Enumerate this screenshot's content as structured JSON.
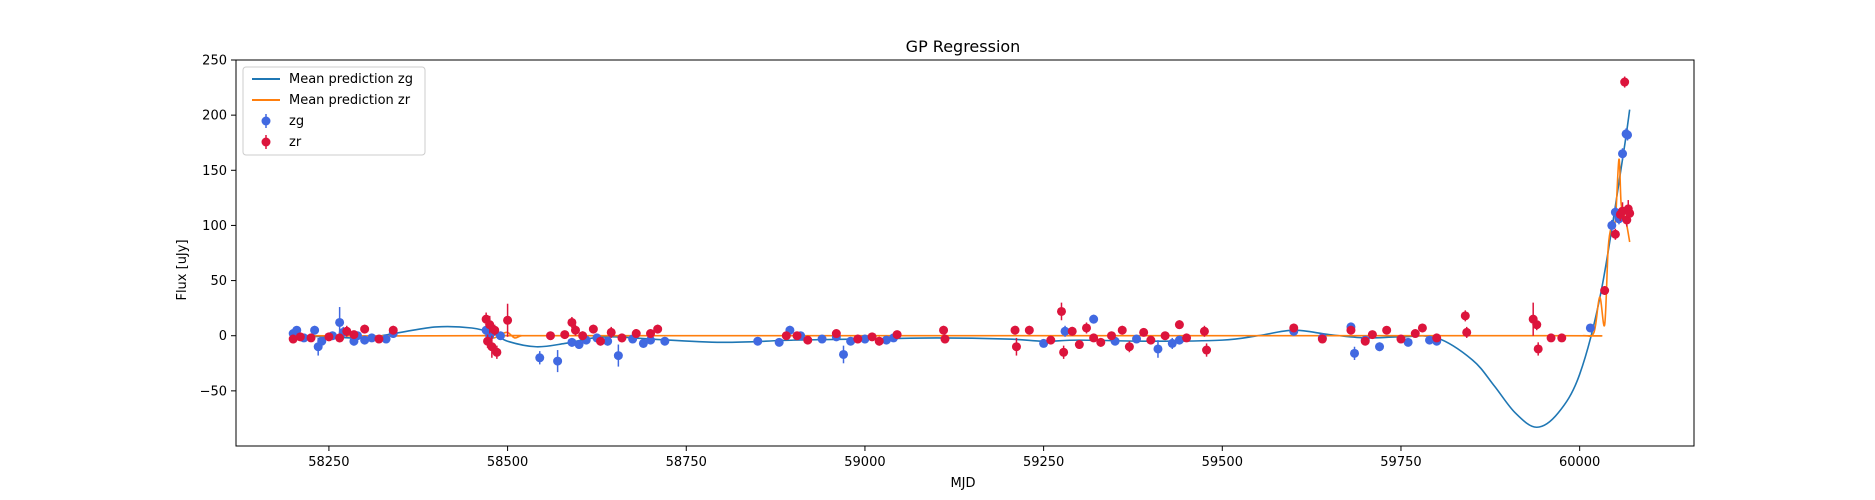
{
  "chart_data": {
    "type": "scatter",
    "title": "GP Regression",
    "xlabel": "MJD",
    "ylabel": "Flux [uJy]",
    "xlim": [
      58120,
      60160
    ],
    "ylim": [
      -100,
      250
    ],
    "xticks": [
      58250,
      58500,
      58750,
      59000,
      59250,
      59500,
      59750,
      60000
    ],
    "yticks": [
      -50,
      0,
      50,
      100,
      150,
      200,
      250
    ],
    "grid": false,
    "legend_position": "top-left",
    "legend": [
      {
        "label": "Mean prediction zg",
        "kind": "line",
        "color": "#1f77b4"
      },
      {
        "label": "Mean prediction zr",
        "kind": "line",
        "color": "#ff7f0e"
      },
      {
        "label": "zg",
        "kind": "errorbar",
        "color": "#4169e1"
      },
      {
        "label": "zr",
        "kind": "errorbar",
        "color": "#dc143c"
      }
    ],
    "lines": [
      {
        "name": "Mean prediction zg",
        "color": "#1f77b4",
        "x": [
          58200,
          58250,
          58300,
          58350,
          58400,
          58450,
          58480,
          58500,
          58540,
          58580,
          58620,
          58650,
          58700,
          58800,
          58900,
          59000,
          59100,
          59200,
          59250,
          59300,
          59400,
          59500,
          59550,
          59600,
          59650,
          59700,
          59750,
          59800,
          59850,
          59880,
          59910,
          59940,
          59970,
          60000,
          60030,
          60060,
          60070
        ],
        "y": [
          0,
          -1,
          -2,
          3,
          8,
          7,
          2,
          -5,
          -10,
          -7,
          -2,
          -1,
          -3,
          -6,
          -4,
          -3,
          -2,
          -3,
          -5,
          -4,
          -5,
          -4,
          0,
          5,
          1,
          -2,
          -1,
          -2,
          -22,
          -45,
          -70,
          -83,
          -70,
          -35,
          40,
          160,
          205
        ]
      },
      {
        "name": "Mean prediction zr",
        "color": "#ff7f0e",
        "x": [
          58200,
          58460,
          58470,
          58480,
          58490,
          58500,
          58510,
          58520,
          58540,
          59200,
          59960,
          60005,
          60020,
          60028,
          60035,
          60040,
          60045,
          60050,
          60055,
          60058,
          60062,
          60066,
          60070
        ],
        "y": [
          0,
          0,
          3,
          -2,
          1,
          3,
          -2,
          0,
          0,
          0,
          0,
          0,
          3,
          35,
          10,
          80,
          100,
          105,
          160,
          120,
          110,
          100,
          85
        ]
      }
    ],
    "series": [
      {
        "name": "zg",
        "color": "#4169e1",
        "points": [
          [
            58200,
            2,
            3
          ],
          [
            58205,
            5,
            3
          ],
          [
            58215,
            -2,
            3
          ],
          [
            58230,
            5,
            4
          ],
          [
            58235,
            -10,
            8
          ],
          [
            58240,
            -5,
            4
          ],
          [
            58255,
            0,
            3
          ],
          [
            58265,
            12,
            14
          ],
          [
            58270,
            3,
            5
          ],
          [
            58285,
            -5,
            4
          ],
          [
            58290,
            0,
            3
          ],
          [
            58300,
            -4,
            4
          ],
          [
            58310,
            -2,
            3
          ],
          [
            58330,
            -3,
            3
          ],
          [
            58340,
            2,
            4
          ],
          [
            58470,
            5,
            4
          ],
          [
            58475,
            0,
            3
          ],
          [
            58490,
            0,
            3
          ],
          [
            58545,
            -20,
            6
          ],
          [
            58570,
            -23,
            10
          ],
          [
            58590,
            -6,
            4
          ],
          [
            58600,
            -8,
            4
          ],
          [
            58610,
            -4,
            3
          ],
          [
            58625,
            -2,
            3
          ],
          [
            58640,
            -5,
            4
          ],
          [
            58655,
            -18,
            10
          ],
          [
            58675,
            -3,
            3
          ],
          [
            58690,
            -7,
            4
          ],
          [
            58700,
            -4,
            3
          ],
          [
            58720,
            -5,
            3
          ],
          [
            58850,
            -5,
            3
          ],
          [
            58880,
            -6,
            3
          ],
          [
            58895,
            5,
            4
          ],
          [
            58910,
            0,
            3
          ],
          [
            58940,
            -3,
            3
          ],
          [
            58960,
            -1,
            3
          ],
          [
            58970,
            -17,
            8
          ],
          [
            58980,
            -5,
            3
          ],
          [
            59000,
            -3,
            4
          ],
          [
            59030,
            -4,
            3
          ],
          [
            59040,
            -2,
            3
          ],
          [
            59250,
            -7,
            3
          ],
          [
            59280,
            4,
            5
          ],
          [
            59320,
            15,
            4
          ],
          [
            59350,
            -5,
            3
          ],
          [
            59380,
            -3,
            3
          ],
          [
            59410,
            -12,
            8
          ],
          [
            59430,
            -7,
            5
          ],
          [
            59440,
            -4,
            4
          ],
          [
            59600,
            4,
            4
          ],
          [
            59640,
            -2,
            3
          ],
          [
            59680,
            8,
            4
          ],
          [
            59685,
            -16,
            6
          ],
          [
            59700,
            -4,
            3
          ],
          [
            59720,
            -10,
            4
          ],
          [
            59760,
            -6,
            3
          ],
          [
            59790,
            -4,
            3
          ],
          [
            59800,
            -5,
            3
          ],
          [
            60015,
            7,
            3
          ],
          [
            60045,
            100,
            5
          ],
          [
            60050,
            112,
            5
          ],
          [
            60055,
            106,
            5
          ],
          [
            60060,
            165,
            5
          ],
          [
            60065,
            183,
            5
          ],
          [
            60067,
            182,
            5
          ]
        ]
      },
      {
        "name": "zr",
        "color": "#dc143c",
        "points": [
          [
            58200,
            -3,
            4
          ],
          [
            58210,
            -1,
            3
          ],
          [
            58225,
            -2,
            3
          ],
          [
            58250,
            -1,
            3
          ],
          [
            58265,
            -2,
            4
          ],
          [
            58275,
            4,
            5
          ],
          [
            58285,
            1,
            3
          ],
          [
            58300,
            6,
            4
          ],
          [
            58320,
            -3,
            3
          ],
          [
            58340,
            5,
            4
          ],
          [
            58470,
            15,
            6
          ],
          [
            58472,
            -5,
            6
          ],
          [
            58475,
            10,
            8
          ],
          [
            58478,
            -10,
            10
          ],
          [
            58482,
            5,
            5
          ],
          [
            58485,
            -15,
            6
          ],
          [
            58500,
            14,
            15
          ],
          [
            58560,
            0,
            3
          ],
          [
            58580,
            1,
            3
          ],
          [
            58590,
            12,
            5
          ],
          [
            58595,
            5,
            5
          ],
          [
            58605,
            0,
            4
          ],
          [
            58620,
            6,
            4
          ],
          [
            58630,
            -5,
            4
          ],
          [
            58645,
            3,
            5
          ],
          [
            58660,
            -2,
            4
          ],
          [
            58680,
            2,
            4
          ],
          [
            58700,
            2,
            3
          ],
          [
            58710,
            6,
            4
          ],
          [
            58890,
            0,
            3
          ],
          [
            58905,
            0,
            3
          ],
          [
            58920,
            -4,
            3
          ],
          [
            58960,
            2,
            3
          ],
          [
            58990,
            -3,
            4
          ],
          [
            59010,
            -1,
            3
          ],
          [
            59020,
            -5,
            4
          ],
          [
            59045,
            1,
            3
          ],
          [
            59110,
            5,
            4
          ],
          [
            59112,
            -3,
            4
          ],
          [
            59210,
            5,
            4
          ],
          [
            59212,
            -10,
            8
          ],
          [
            59230,
            5,
            4
          ],
          [
            59260,
            -4,
            3
          ],
          [
            59275,
            22,
            8
          ],
          [
            59278,
            -15,
            6
          ],
          [
            59290,
            4,
            4
          ],
          [
            59300,
            -8,
            4
          ],
          [
            59310,
            7,
            5
          ],
          [
            59320,
            -2,
            3
          ],
          [
            59330,
            -6,
            4
          ],
          [
            59345,
            0,
            3
          ],
          [
            59360,
            5,
            4
          ],
          [
            59370,
            -10,
            5
          ],
          [
            59390,
            3,
            3
          ],
          [
            59400,
            -4,
            3
          ],
          [
            59420,
            0,
            3
          ],
          [
            59440,
            10,
            4
          ],
          [
            59450,
            -2,
            3
          ],
          [
            59475,
            4,
            5
          ],
          [
            59478,
            -13,
            6
          ],
          [
            59600,
            7,
            4
          ],
          [
            59640,
            -3,
            3
          ],
          [
            59680,
            5,
            4
          ],
          [
            59700,
            -5,
            3
          ],
          [
            59710,
            1,
            3
          ],
          [
            59730,
            5,
            3
          ],
          [
            59750,
            -3,
            3
          ],
          [
            59770,
            2,
            3
          ],
          [
            59780,
            7,
            4
          ],
          [
            59800,
            -2,
            3
          ],
          [
            59840,
            18,
            5
          ],
          [
            59842,
            3,
            5
          ],
          [
            59935,
            15,
            15
          ],
          [
            59940,
            10,
            5
          ],
          [
            59942,
            -12,
            6
          ],
          [
            59960,
            -2,
            3
          ],
          [
            59975,
            -2,
            3
          ],
          [
            60035,
            41,
            4
          ],
          [
            60050,
            92,
            5
          ],
          [
            60057,
            110,
            6
          ],
          [
            60060,
            113,
            8
          ],
          [
            60063,
            230,
            5
          ],
          [
            60066,
            105,
            6
          ],
          [
            60068,
            115,
            8
          ],
          [
            60070,
            111,
            6
          ]
        ]
      }
    ]
  }
}
